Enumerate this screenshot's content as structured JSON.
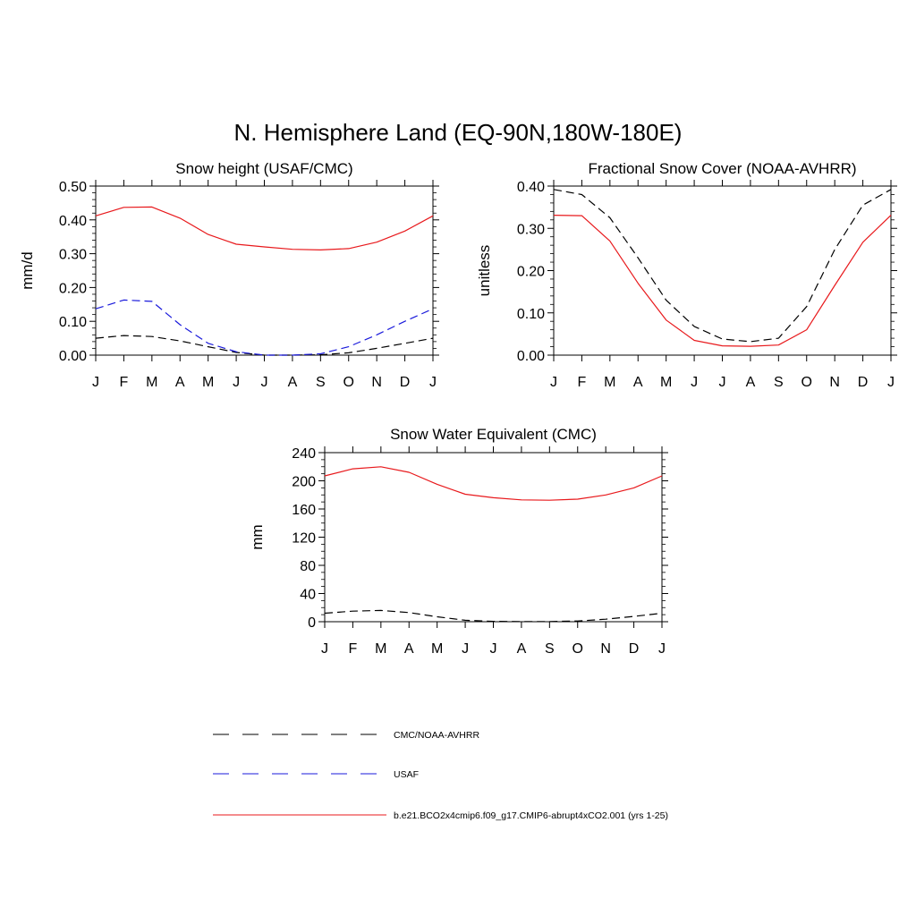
{
  "figure": {
    "title": "N. Hemisphere Land (EQ-90N,180W-180E)"
  },
  "colors": {
    "model": "#e8191c",
    "usaf": "#1a1adb",
    "obs": "#000000"
  },
  "legend": {
    "items": [
      {
        "label": "CMC/NOAA-AVHRR",
        "style": "dashed",
        "color": "#000000"
      },
      {
        "label": "USAF",
        "style": "dashed",
        "color": "#1a1adb"
      },
      {
        "label": "b.e21.BCO2x4cmip6.f09_g17.CMIP6-abrupt4xCO2.001 (yrs 1-25)",
        "style": "solid",
        "color": "#e8191c"
      }
    ]
  },
  "chart_data": [
    {
      "type": "line",
      "title": "Snow height (USAF/CMC)",
      "xlabel": "",
      "ylabel": "mm/d",
      "categories": [
        "J",
        "F",
        "M",
        "A",
        "M",
        "J",
        "J",
        "A",
        "S",
        "O",
        "N",
        "D",
        "J"
      ],
      "ylim": [
        0,
        0.5
      ],
      "yticks": [
        "0.00",
        "0.10",
        "0.20",
        "0.30",
        "0.40",
        "0.50"
      ],
      "series": [
        {
          "name": "b.e21.BCO2x4cmip6.f09_g17.CMIP6-abrupt4xCO2.001 (yrs 1-25)",
          "style": "solid",
          "color": "#e8191c",
          "values": [
            0.412,
            0.437,
            0.438,
            0.405,
            0.357,
            0.328,
            0.32,
            0.313,
            0.311,
            0.315,
            0.334,
            0.367,
            0.412
          ]
        },
        {
          "name": "USAF",
          "style": "dashed",
          "color": "#1a1adb",
          "values": [
            0.137,
            0.163,
            0.159,
            0.09,
            0.035,
            0.01,
            0.0,
            0.0,
            0.004,
            0.025,
            0.06,
            0.1,
            0.137
          ]
        },
        {
          "name": "CMC/NOAA-AVHRR",
          "style": "dashed",
          "color": "#000000",
          "values": [
            0.05,
            0.058,
            0.055,
            0.042,
            0.025,
            0.008,
            0.0,
            0.0,
            0.001,
            0.007,
            0.02,
            0.035,
            0.05
          ]
        }
      ]
    },
    {
      "type": "line",
      "title": "Fractional Snow Cover (NOAA-AVHRR)",
      "xlabel": "",
      "ylabel": "unitless",
      "categories": [
        "J",
        "F",
        "M",
        "A",
        "M",
        "J",
        "J",
        "A",
        "S",
        "O",
        "N",
        "D",
        "J"
      ],
      "ylim": [
        0,
        0.4
      ],
      "yticks": [
        "0.00",
        "0.10",
        "0.20",
        "0.30",
        "0.40"
      ],
      "series": [
        {
          "name": "b.e21.BCO2x4cmip6.f09_g17.CMIP6-abrupt4xCO2.001 (yrs 1-25)",
          "style": "solid",
          "color": "#e8191c",
          "values": [
            0.331,
            0.33,
            0.27,
            0.17,
            0.083,
            0.035,
            0.022,
            0.021,
            0.024,
            0.06,
            0.165,
            0.267,
            0.331
          ]
        },
        {
          "name": "CMC/NOAA-AVHRR",
          "style": "dashed",
          "color": "#000000",
          "values": [
            0.392,
            0.38,
            0.325,
            0.23,
            0.13,
            0.068,
            0.038,
            0.032,
            0.04,
            0.115,
            0.25,
            0.355,
            0.392
          ]
        }
      ]
    },
    {
      "type": "line",
      "title": "Snow Water Equivalent (CMC)",
      "xlabel": "",
      "ylabel": "mm",
      "categories": [
        "J",
        "F",
        "M",
        "A",
        "M",
        "J",
        "J",
        "A",
        "S",
        "O",
        "N",
        "D",
        "J"
      ],
      "ylim": [
        0,
        240
      ],
      "yticks": [
        "0",
        "40",
        "80",
        "120",
        "160",
        "200",
        "240"
      ],
      "series": [
        {
          "name": "b.e21.BCO2x4cmip6.f09_g17.CMIP6-abrupt4xCO2.001 (yrs 1-25)",
          "style": "solid",
          "color": "#e8191c",
          "values": [
            207,
            217,
            220,
            212,
            195,
            181,
            176,
            173,
            172.5,
            174,
            180,
            190,
            207
          ]
        },
        {
          "name": "CMC/NOAA-AVHRR",
          "style": "dashed",
          "color": "#000000",
          "values": [
            12,
            15,
            16,
            13,
            7,
            2,
            0.5,
            0.3,
            0.3,
            1,
            3.5,
            7.5,
            12
          ]
        }
      ]
    }
  ]
}
